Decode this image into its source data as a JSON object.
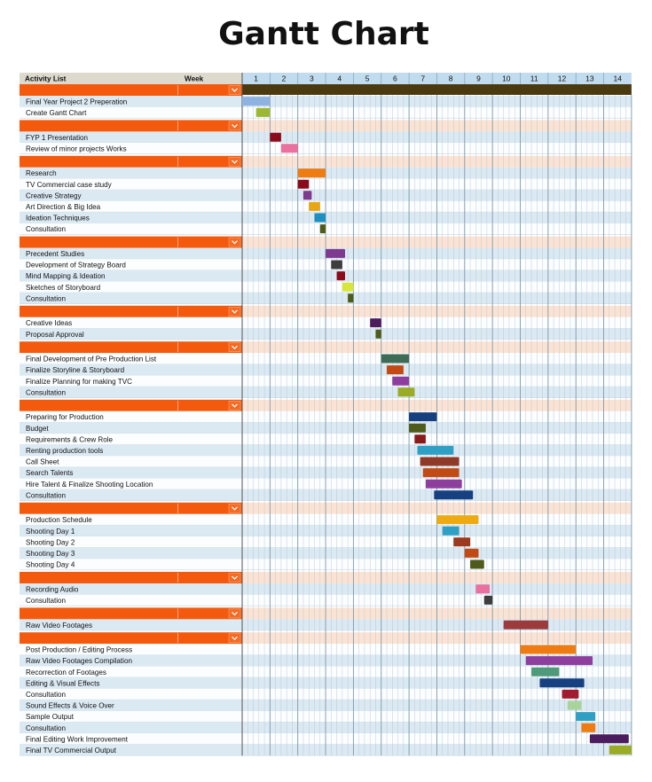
{
  "chart_data": {
    "type": "gantt",
    "title": "Gantt Chart",
    "header": {
      "activity_label": "Activity List",
      "week_label": "Week"
    },
    "weeks": [
      "1",
      "2",
      "3",
      "4",
      "5",
      "6",
      "7",
      "8",
      "9",
      "10",
      "11",
      "12",
      "13",
      "14"
    ],
    "colors": {
      "orange": "#f35a0e",
      "header_bg": "#ddd9cd",
      "week_header_bg": "#c2dcef",
      "row_light": "#dbe9f3",
      "row_white": "#fbfdfe",
      "section_band": "#fbe3d4",
      "grid_line": "#a9bccb",
      "top_bar": "#4b3a0f"
    },
    "rows": [
      {
        "type": "section"
      },
      {
        "type": "task",
        "label": "Final Year Project 2 Preperation",
        "start": 1,
        "end": 2,
        "color": "#8fb3e0"
      },
      {
        "type": "task",
        "label": "Create Gantt Chart",
        "start": 1.5,
        "end": 2,
        "color": "#9cb833"
      },
      {
        "type": "section"
      },
      {
        "type": "task",
        "label": "FYP 1 Presentation",
        "start": 2,
        "end": 2.4,
        "color": "#8b0b1b"
      },
      {
        "type": "task",
        "label": "Review of minor projects Works",
        "start": 2.4,
        "end": 3,
        "color": "#e9709f"
      },
      {
        "type": "section"
      },
      {
        "type": "task",
        "label": "Research",
        "start": 3,
        "end": 4,
        "color": "#ef7c12"
      },
      {
        "type": "task",
        "label": "TV Commercial case study",
        "start": 3,
        "end": 3.4,
        "color": "#8b0b1b"
      },
      {
        "type": "task",
        "label": "Creative Strategy",
        "start": 3.2,
        "end": 3.5,
        "color": "#7e3a8e"
      },
      {
        "type": "task",
        "label": "Art Direction & Big Idea",
        "start": 3.4,
        "end": 3.8,
        "color": "#e8a612"
      },
      {
        "type": "task",
        "label": "Ideation Techniques",
        "start": 3.6,
        "end": 4,
        "color": "#1f8fbf"
      },
      {
        "type": "task",
        "label": "Consultation",
        "start": 3.8,
        "end": 4,
        "color": "#4e5b1a"
      },
      {
        "type": "section"
      },
      {
        "type": "task",
        "label": "Precedent Studies",
        "start": 4,
        "end": 4.7,
        "color": "#7e3a8e"
      },
      {
        "type": "task",
        "label": "Development of Strategy Board",
        "start": 4.2,
        "end": 4.6,
        "color": "#3d3d3d"
      },
      {
        "type": "task",
        "label": "Mind Mapping & Ideation",
        "start": 4.4,
        "end": 4.7,
        "color": "#8b0b1b"
      },
      {
        "type": "task",
        "label": "Sketches of Storyboard",
        "start": 4.6,
        "end": 5,
        "color": "#d8e63b"
      },
      {
        "type": "task",
        "label": "Consultation",
        "start": 4.8,
        "end": 5,
        "color": "#4e5b1a"
      },
      {
        "type": "section"
      },
      {
        "type": "task",
        "label": "Creative Ideas",
        "start": 5.6,
        "end": 6,
        "color": "#4b1d5e"
      },
      {
        "type": "task",
        "label": "Proposal Approval",
        "start": 5.8,
        "end": 6,
        "color": "#4e5b1a"
      },
      {
        "type": "section"
      },
      {
        "type": "task",
        "label": "Final Development of Pre Production List",
        "start": 6,
        "end": 7,
        "color": "#3e6b55"
      },
      {
        "type": "task",
        "label": "Finalize Storyline & Storyboard",
        "start": 6.2,
        "end": 6.8,
        "color": "#c24a14"
      },
      {
        "type": "task",
        "label": "Finalize Planning for making TVC",
        "start": 6.4,
        "end": 7,
        "color": "#8e3f9e"
      },
      {
        "type": "task",
        "label": "Consultation",
        "start": 6.6,
        "end": 7.2,
        "color": "#9aab25"
      },
      {
        "type": "section"
      },
      {
        "type": "task",
        "label": "Preparing for Production",
        "start": 7,
        "end": 8,
        "color": "#16407f"
      },
      {
        "type": "task",
        "label": "Budget",
        "start": 7,
        "end": 7.6,
        "color": "#4e5b1a"
      },
      {
        "type": "task",
        "label": "Requirements & Crew Role",
        "start": 7.2,
        "end": 7.6,
        "color": "#8b1a1a"
      },
      {
        "type": "task",
        "label": "Renting production tools",
        "start": 7.3,
        "end": 8.6,
        "color": "#2fa0c4"
      },
      {
        "type": "task",
        "label": "Call Sheet",
        "start": 7.4,
        "end": 8.8,
        "color": "#8f3a28"
      },
      {
        "type": "task",
        "label": "Search Talents",
        "start": 7.5,
        "end": 8.8,
        "color": "#c24a14"
      },
      {
        "type": "task",
        "label": "Hire Talent & Finalize Shooting Location",
        "start": 7.6,
        "end": 8.9,
        "color": "#8e3f9e"
      },
      {
        "type": "task",
        "label": "Consultation",
        "start": 7.9,
        "end": 9.3,
        "color": "#16407f"
      },
      {
        "type": "section"
      },
      {
        "type": "task",
        "label": "Production Schedule",
        "start": 8,
        "end": 9.5,
        "color": "#eeaa10"
      },
      {
        "type": "task",
        "label": "Shooting Day 1",
        "start": 8.2,
        "end": 8.8,
        "color": "#2fa0c4"
      },
      {
        "type": "task",
        "label": "Shooting Day 2",
        "start": 8.6,
        "end": 9.2,
        "color": "#9b3a1e"
      },
      {
        "type": "task",
        "label": "Shooting Day 3",
        "start": 9,
        "end": 9.5,
        "color": "#c24a14"
      },
      {
        "type": "task",
        "label": "Shooting Day 4",
        "start": 9.2,
        "end": 9.7,
        "color": "#4e5b1a"
      },
      {
        "type": "section"
      },
      {
        "type": "task",
        "label": "Recording Audio",
        "start": 9.4,
        "end": 9.9,
        "color": "#e9709f"
      },
      {
        "type": "task",
        "label": "Consultation",
        "start": 9.7,
        "end": 10,
        "color": "#3d3d3d"
      },
      {
        "type": "section"
      },
      {
        "type": "task",
        "label": "Raw Video Footages",
        "start": 10.4,
        "end": 12,
        "color": "#9b3b3b"
      },
      {
        "type": "section"
      },
      {
        "type": "task",
        "label": "Post Production / Editing Process",
        "start": 11,
        "end": 13,
        "color": "#ef7c12"
      },
      {
        "type": "task",
        "label": "Raw Video Footages Compilation",
        "start": 11.2,
        "end": 13.6,
        "color": "#8e3f9e"
      },
      {
        "type": "task",
        "label": "Recorrection of Footages",
        "start": 11.4,
        "end": 12.4,
        "color": "#4e9a7a"
      },
      {
        "type": "task",
        "label": "Editing & Visual Effects",
        "start": 11.7,
        "end": 13.3,
        "color": "#16407f"
      },
      {
        "type": "task",
        "label": "Consultation",
        "start": 12.5,
        "end": 13.1,
        "color": "#a01c2e"
      },
      {
        "type": "task",
        "label": "Sound Effects & Voice Over",
        "start": 12.7,
        "end": 13.2,
        "color": "#a8d49c"
      },
      {
        "type": "task",
        "label": "Sample Output",
        "start": 13,
        "end": 13.7,
        "color": "#2fa0c4"
      },
      {
        "type": "task",
        "label": "Consultation",
        "start": 13.2,
        "end": 13.7,
        "color": "#ef7c12"
      },
      {
        "type": "task",
        "label": "Final Editing Work Improvement",
        "start": 13.5,
        "end": 14.9,
        "color": "#4b1d5e"
      },
      {
        "type": "task",
        "label": "Final TV Commercial Output",
        "start": 14.2,
        "end": 15,
        "color": "#9aab25"
      }
    ]
  }
}
